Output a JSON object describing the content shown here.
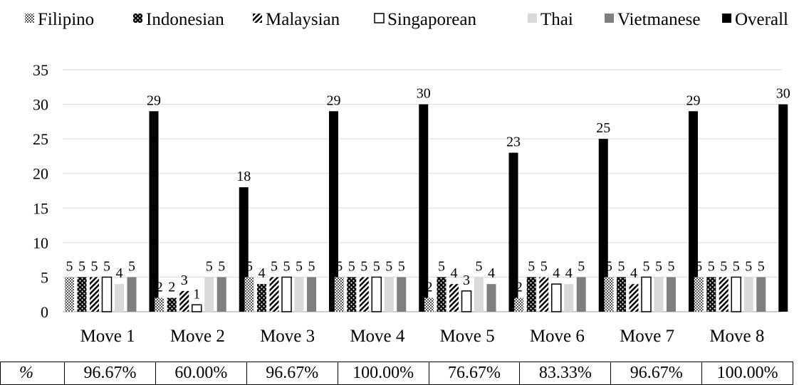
{
  "chart_data": {
    "type": "bar",
    "title": "",
    "xlabel": "",
    "ylabel": "",
    "ylim": [
      0,
      35
    ],
    "yticks": [
      0,
      5,
      10,
      15,
      20,
      25,
      30,
      35
    ],
    "grid": true,
    "legend_position": "top",
    "categories": [
      "Move 1",
      "Move 2",
      "Move 3",
      "Move 4",
      "Move 5",
      "Move 6",
      "Move 7",
      "Move 8"
    ],
    "series": [
      {
        "name": "Filipino",
        "pattern": "checker",
        "color": "#9a9a9a",
        "values": [
          5,
          2,
          5,
          5,
          2,
          2,
          5,
          5
        ]
      },
      {
        "name": "Indonesian",
        "pattern": "dots",
        "color": "#000000",
        "values": [
          5,
          2,
          4,
          5,
          5,
          5,
          5,
          5
        ]
      },
      {
        "name": "Malaysian",
        "pattern": "diagonal",
        "color": "#000000",
        "values": [
          5,
          3,
          5,
          5,
          4,
          5,
          4,
          5
        ]
      },
      {
        "name": "Singaporean",
        "pattern": "hollow",
        "color": "#ffffff",
        "values": [
          5,
          1,
          5,
          5,
          3,
          4,
          5,
          5
        ]
      },
      {
        "name": "Thai",
        "pattern": "solid",
        "color": "#d9d9d9",
        "values": [
          4,
          5,
          5,
          5,
          5,
          4,
          5,
          5
        ]
      },
      {
        "name": "Vietmanese",
        "pattern": "solid",
        "color": "#7f7f7f",
        "values": [
          5,
          5,
          5,
          5,
          4,
          5,
          5,
          5
        ]
      },
      {
        "name": "Overall",
        "pattern": "solid",
        "color": "#000000",
        "values": [
          29,
          18,
          29,
          30,
          23,
          25,
          29,
          30
        ]
      }
    ]
  },
  "table": {
    "label": "%",
    "values": [
      "96.67%",
      "60.00%",
      "96.67%",
      "100.00%",
      "76.67%",
      "83.33%",
      "96.67%",
      "100.00%"
    ]
  }
}
